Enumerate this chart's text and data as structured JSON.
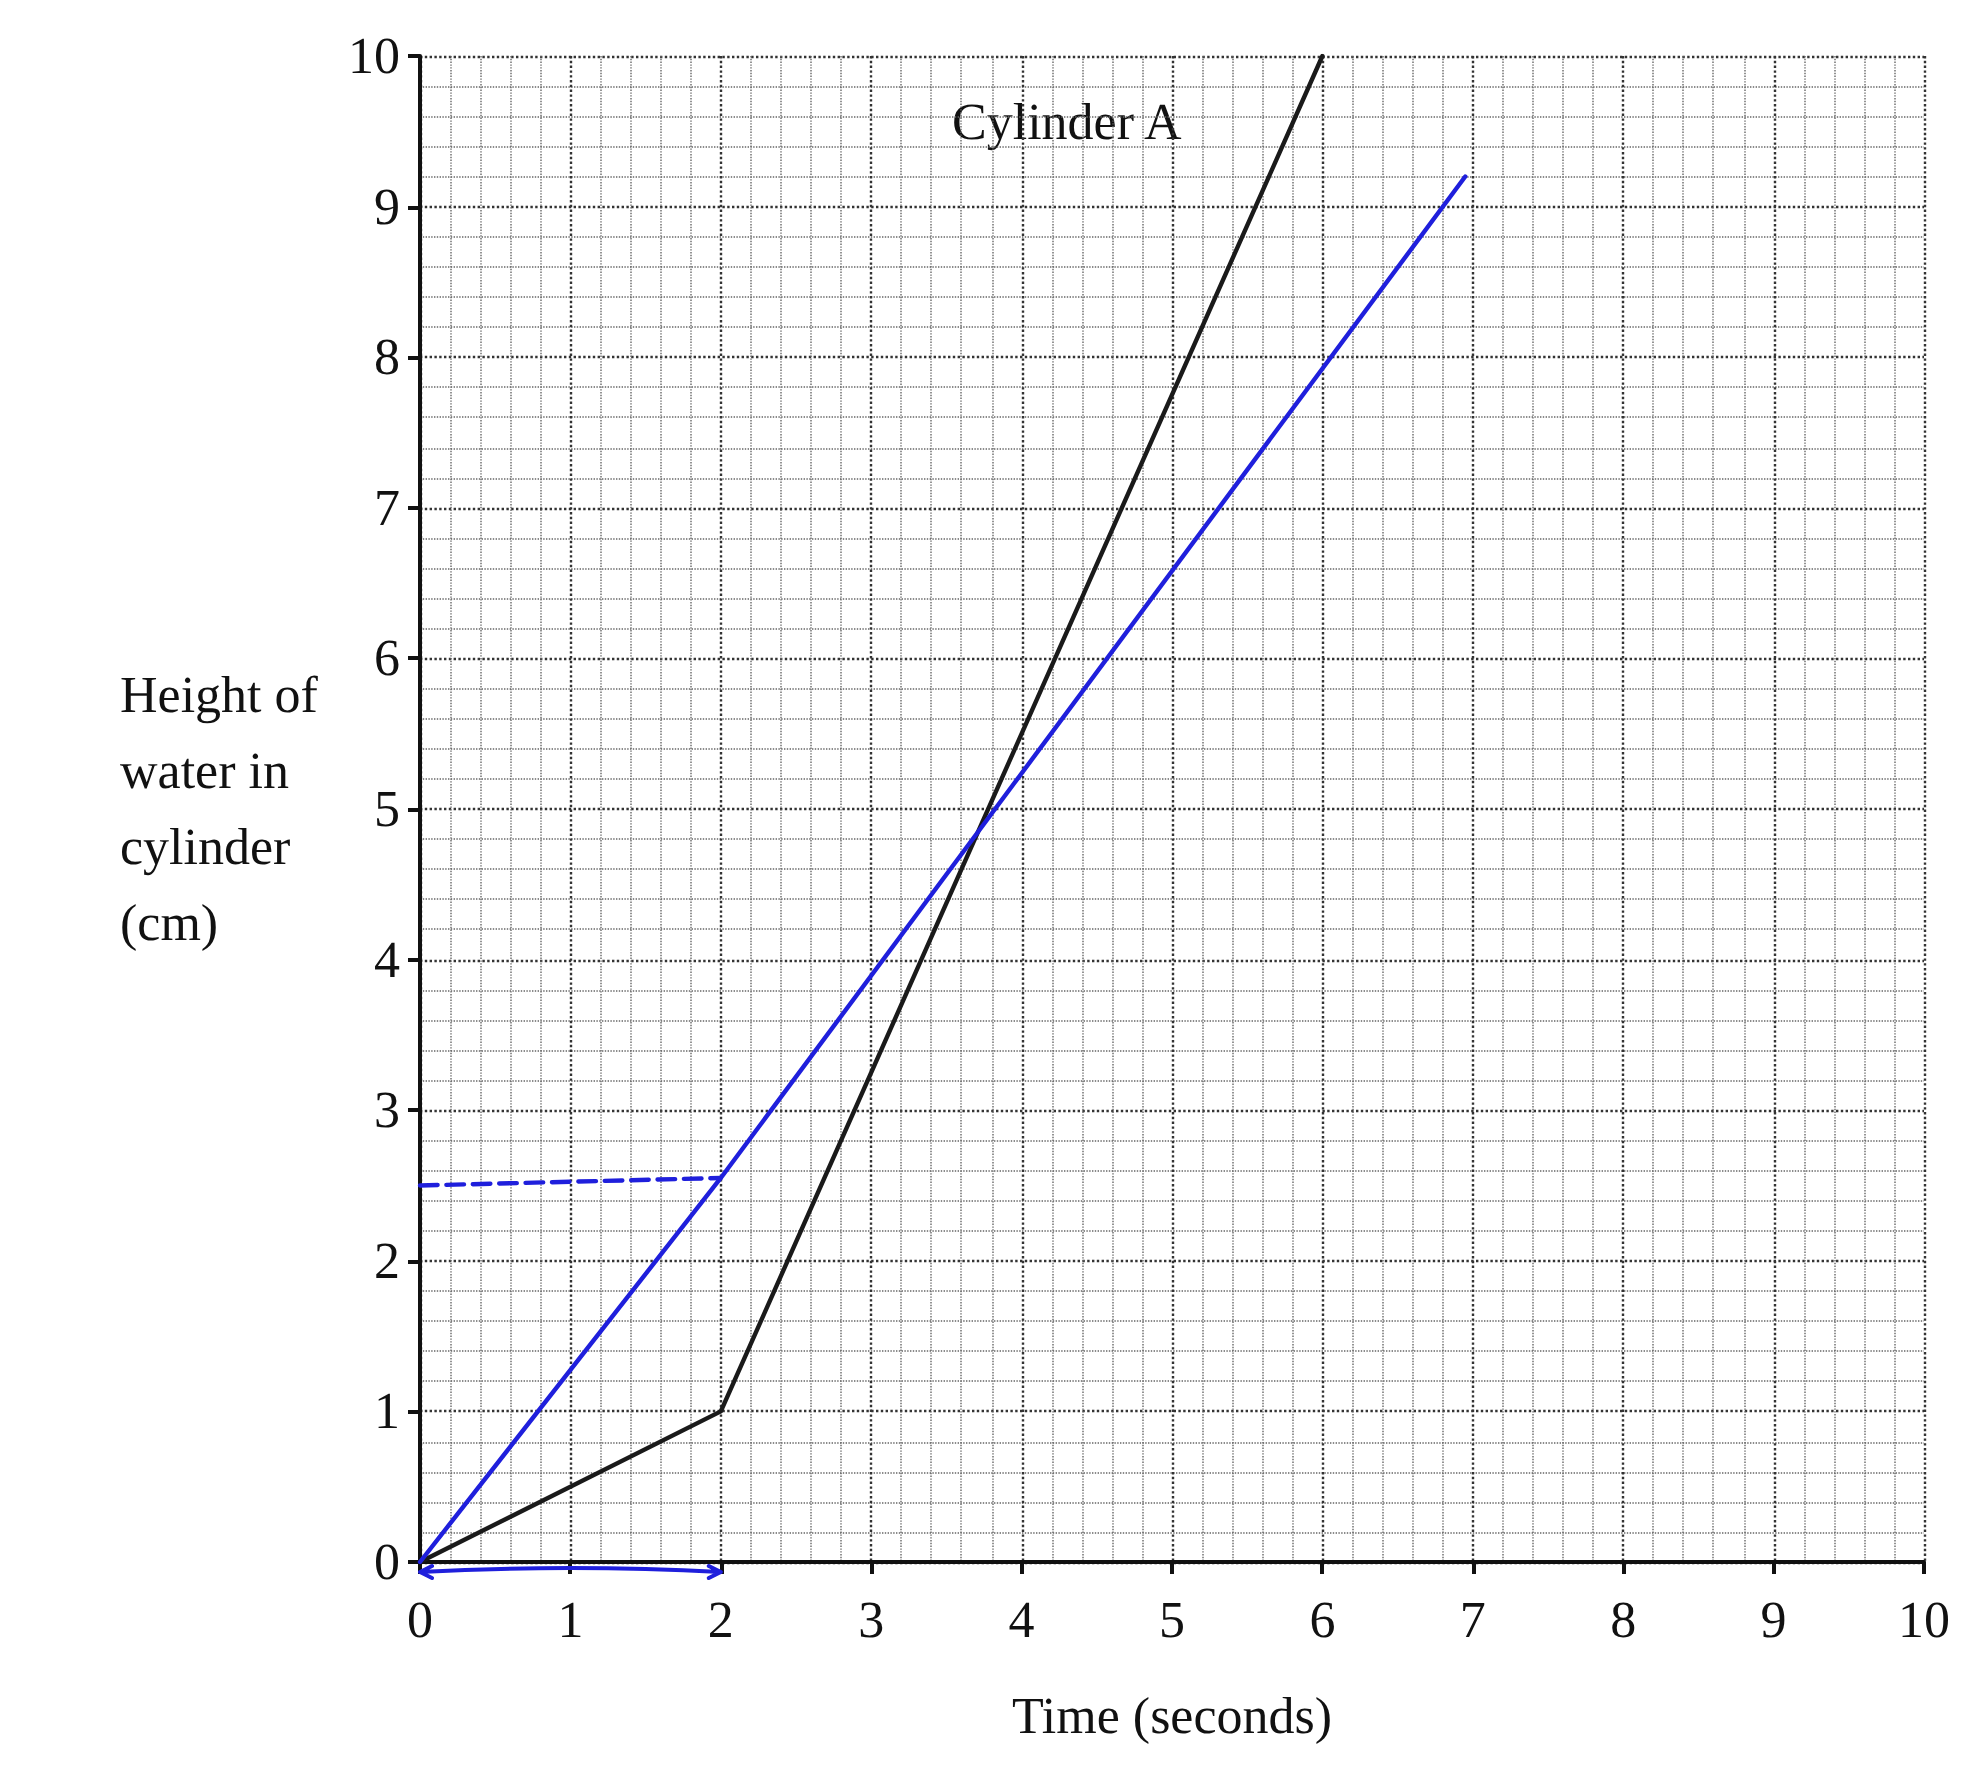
{
  "chart_data": {
    "type": "line",
    "xlabel": "Time (seconds)",
    "ylabel": "Height of\nwater in\ncylinder\n(cm)",
    "series": [
      {
        "color": "#1a1a1a",
        "x": [
          0,
          2,
          6
        ],
        "values": [
          0,
          1,
          10
        ]
      },
      {
        "color": "#1f1fdc",
        "x": [
          0,
          2,
          6.95
        ],
        "values": [
          0,
          2.55,
          9.2
        ]
      },
      {
        "color": "#1f1fdc",
        "x": [
          0,
          2
        ],
        "values": [
          2.5,
          2.55
        ],
        "line_style": "dashed"
      }
    ],
    "annotations": [
      "Cylinder A"
    ],
    "xlim": [
      0,
      10
    ],
    "ylim": [
      0,
      10
    ],
    "xticks": [
      0,
      1,
      2,
      3,
      4,
      5,
      6,
      7,
      8,
      9,
      10
    ],
    "yticks": [
      0,
      1,
      2,
      3,
      4,
      5,
      6,
      7,
      8,
      9,
      10
    ],
    "grid": true,
    "marker": "none",
    "line_style": "solid"
  }
}
